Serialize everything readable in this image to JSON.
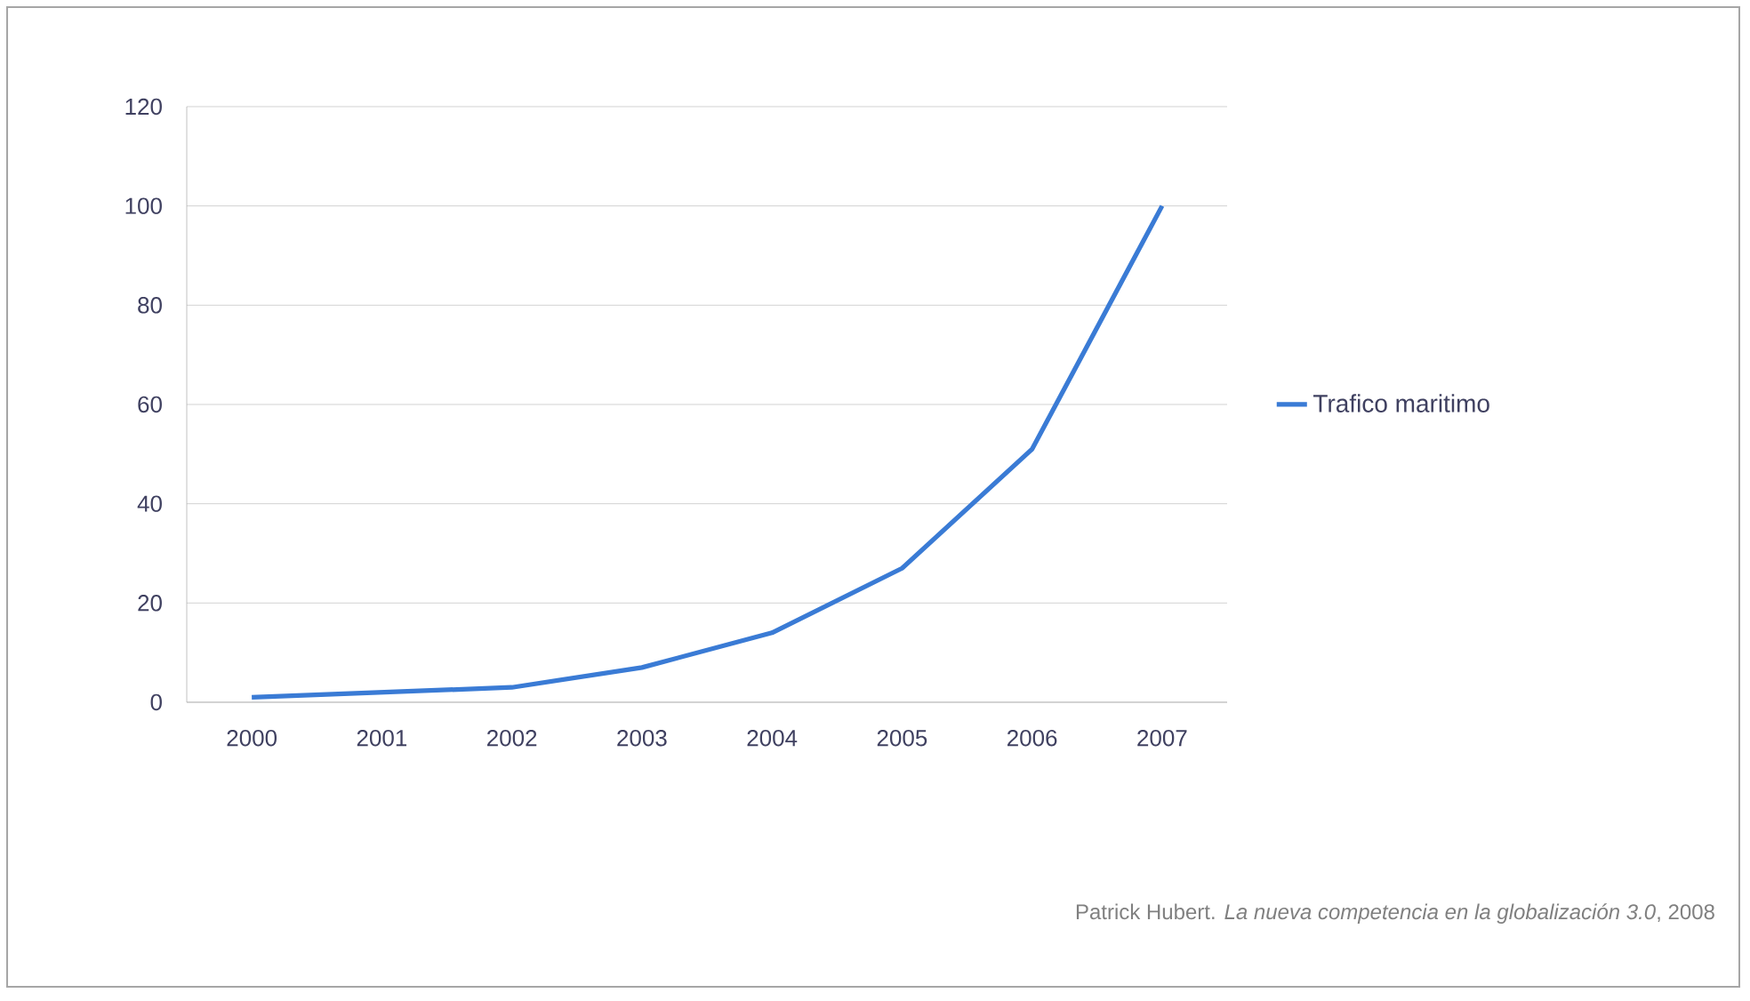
{
  "chart_data": {
    "type": "line",
    "categories": [
      "2000",
      "2001",
      "2002",
      "2003",
      "2004",
      "2005",
      "2006",
      "2007"
    ],
    "series": [
      {
        "name": "Trafico maritimo",
        "color": "#3a7bd5",
        "values": [
          1,
          2,
          3,
          7,
          14,
          27,
          51,
          100
        ]
      }
    ],
    "ylim": [
      0,
      120
    ],
    "yticks": [
      0,
      20,
      40,
      60,
      80,
      100,
      120
    ],
    "grid": "y",
    "legend": "right",
    "marker": "none",
    "line_style": "solid",
    "annotations": [
      "Patrick Hubert. *La nueva competencia en la globalización 3.0*, 2008"
    ]
  }
}
